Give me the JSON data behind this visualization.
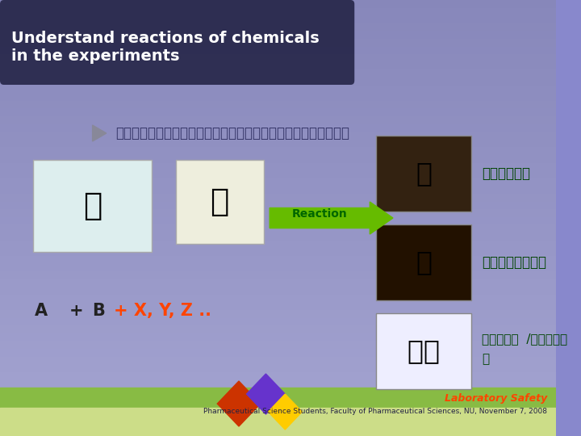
{
  "bg_color_top": "#8888cc",
  "bg_color_bottom": "#aaaadd",
  "title_box_color": "#333355",
  "title_text": "Understand reactions of chemicals\nin the experiments",
  "title_color": "#ffffff",
  "subtitle_thai": "ปฏิกริยาที่เกิดขึ้นในการทดลอง",
  "reaction_label": "Reaction",
  "reaction_color": "#006600",
  "arrow_color": "#66bb00",
  "formula_A": "A",
  "formula_plus": "+",
  "formula_B": "B",
  "formula_extra": "+ X, Y, Z ..",
  "formula_color_AB": "#222222",
  "formula_color_extra": "#ff4400",
  "thai_1": "ระเบิด",
  "thai_2": "ความร้อน",
  "thai_3": "สารพษ  /กาซพว",
  "thai_4": "พ",
  "thai_color": "#004400",
  "footer_logo": "Laboratory Safety",
  "footer_text": "Pharmaceutical Science Students, Faculty of Pharmaceutical Sciences, NU, November 7, 2008",
  "footer_bg": "#88bb44",
  "play_arrow_color": "#888899",
  "bottom_bar_color": "#88bb44",
  "diamond_colors": [
    "#cc3300",
    "#6633cc",
    "#ffcc00"
  ]
}
